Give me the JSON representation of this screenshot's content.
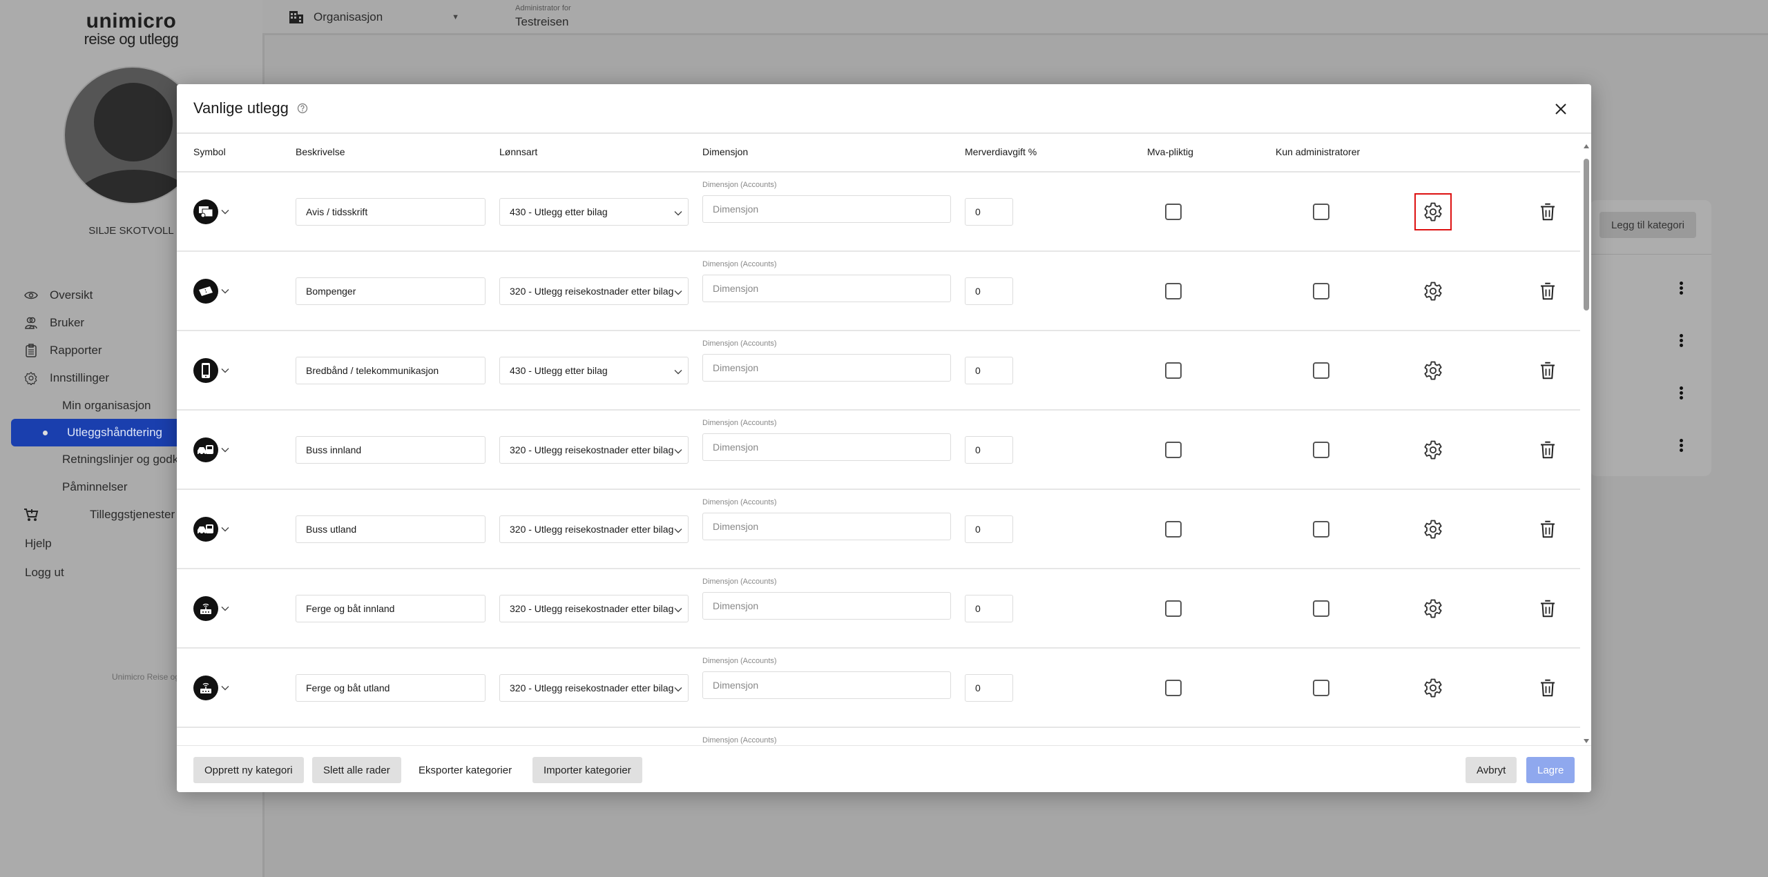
{
  "sidebar": {
    "logo_line1": "unimicro",
    "logo_line2": "reise og utlegg",
    "user_name": "SILJE SKOTVOLL",
    "items": [
      {
        "label": "Oversikt",
        "icon": "eye-icon"
      },
      {
        "label": "Bruker",
        "icon": "users-icon"
      },
      {
        "label": "Rapporter",
        "icon": "clipboard-icon"
      },
      {
        "label": "Innstillinger",
        "icon": "gear-icon"
      },
      {
        "label": "Min organisasjon"
      },
      {
        "label": "Utleggshåndtering",
        "active": true
      },
      {
        "label": "Retningslinjer og godkjenning"
      },
      {
        "label": "Påminnelser"
      },
      {
        "label": "Tilleggstjenester",
        "icon": "cart-plus-icon"
      },
      {
        "label": "Hjelp"
      },
      {
        "label": "Logg ut"
      }
    ],
    "footer": "Unimicro Reise og Utlegg",
    "active_color": "#1a3fae"
  },
  "topbar": {
    "org_label": "Organisasjon",
    "admin_label": "Administrator for",
    "admin_value": "Testreisen"
  },
  "background": {
    "add_category": "Legg til kategori"
  },
  "modal": {
    "title": "Vanlige utlegg",
    "columns": [
      "Symbol",
      "Beskrivelse",
      "Lønnsart",
      "Dimensjon",
      "Merverdiavgift %",
      "Mva-pliktig",
      "Kun administratorer"
    ],
    "dimension_label": "Dimensjon (Accounts)",
    "dimension_placeholder": "Dimensjon",
    "rows": [
      {
        "icon": "newspaper-icon",
        "description": "Avis / tidsskrift",
        "wage_type": "430 - Utlegg etter bilag",
        "vat": "0",
        "vat_liable": false,
        "admin_only": false,
        "settings_highlighted": true
      },
      {
        "icon": "ticket-icon",
        "description": "Bompenger",
        "wage_type": "320 - Utlegg reisekostnader etter bilag",
        "vat": "0",
        "vat_liable": false,
        "admin_only": false
      },
      {
        "icon": "phone-icon",
        "description": "Bredbånd / telekommunikasjon",
        "wage_type": "430 - Utlegg etter bilag",
        "vat": "0",
        "vat_liable": false,
        "admin_only": false
      },
      {
        "icon": "bus-icon",
        "description": "Buss innland",
        "wage_type": "320 - Utlegg reisekostnader etter bilag",
        "vat": "0",
        "vat_liable": false,
        "admin_only": false
      },
      {
        "icon": "bus-icon",
        "description": "Buss utland",
        "wage_type": "320 - Utlegg reisekostnader etter bilag",
        "vat": "0",
        "vat_liable": false,
        "admin_only": false
      },
      {
        "icon": "ferry-icon",
        "description": "Ferge og båt innland",
        "wage_type": "320 - Utlegg reisekostnader etter bilag",
        "vat": "0",
        "vat_liable": false,
        "admin_only": false
      },
      {
        "icon": "ferry-icon",
        "description": "Ferge og båt utland",
        "wage_type": "320 - Utlegg reisekostnader etter bilag",
        "vat": "0",
        "vat_liable": false,
        "admin_only": false
      }
    ],
    "footer": {
      "create": "Opprett ny kategori",
      "delete_all": "Slett alle rader",
      "export": "Eksporter kategorier",
      "import": "Importer kategorier",
      "cancel": "Avbryt",
      "save": "Lagre"
    },
    "save_color": "#8fa8ee",
    "highlight_color": "#dd1111"
  }
}
